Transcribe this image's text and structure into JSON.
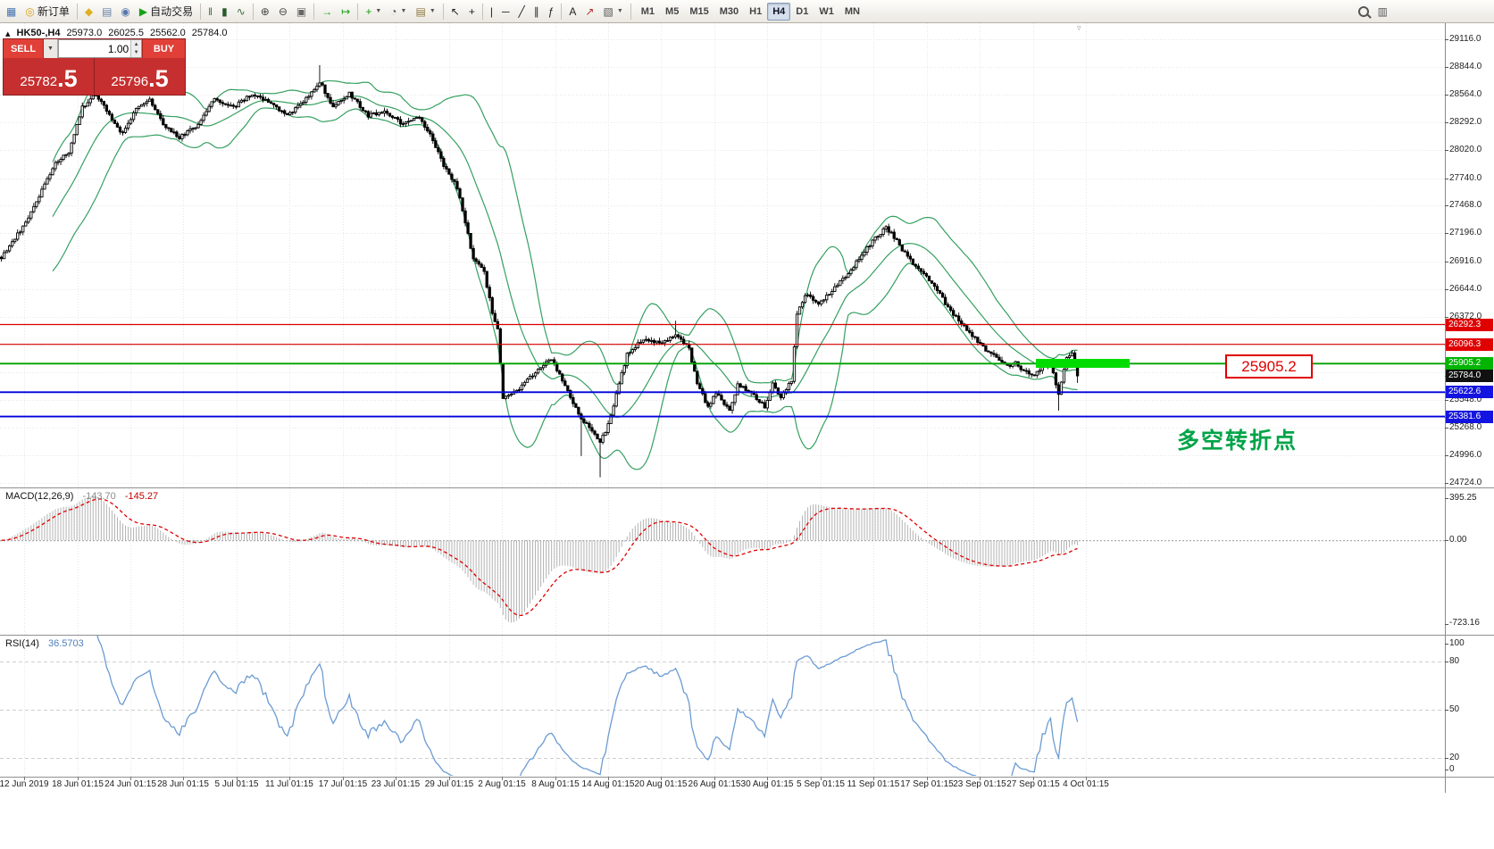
{
  "toolbar": {
    "left_items": [
      {
        "name": "new-chart-icon",
        "glyph": "▦",
        "color": "#4a74b0"
      },
      {
        "name": "new-order-button",
        "glyph": "◎",
        "color": "#d8a018",
        "label": "新订单"
      },
      {
        "sep": true
      },
      {
        "name": "metaeditor-icon",
        "glyph": "◆",
        "color": "#e0b020"
      },
      {
        "name": "history-center-icon",
        "glyph": "▤",
        "color": "#6a84a8"
      },
      {
        "name": "alerts-icon",
        "glyph": "◉",
        "color": "#5578aa"
      },
      {
        "name": "autotrading-button",
        "glyph": "▶",
        "color": "#18a018",
        "label": "自动交易"
      },
      {
        "sep": true
      },
      {
        "name": "bar-chart-icon",
        "glyph": "‖",
        "color": "#3a6e3a"
      },
      {
        "name": "candlestick-chart-icon",
        "glyph": "▮",
        "color": "#2a5a2a"
      },
      {
        "name": "line-chart-icon",
        "glyph": "∿",
        "color": "#3a6e3a"
      },
      {
        "sep": true
      },
      {
        "name": "zoom-in-icon",
        "glyph": "⊕",
        "color": "#444444"
      },
      {
        "name": "zoom-out-icon",
        "glyph": "⊖",
        "color": "#444444"
      },
      {
        "name": "tile-windows-icon",
        "glyph": "▣",
        "color": "#666666"
      },
      {
        "sep": true
      },
      {
        "name": "auto-scroll-icon",
        "glyph": "→",
        "color": "#18a018"
      },
      {
        "name": "chart-shift-icon",
        "glyph": "↦",
        "color": "#18a018"
      },
      {
        "sep": true
      },
      {
        "name": "indicators-dropdown",
        "glyph": "+",
        "color": "#18a018",
        "caret": true
      },
      {
        "name": "periods-dropdown",
        "glyph": "◔",
        "color": "#555555",
        "caret": true
      },
      {
        "name": "templates-dropdown",
        "glyph": "▤",
        "color": "#907840",
        "caret": true
      },
      {
        "sep": true
      },
      {
        "name": "cursor-icon",
        "glyph": "↖",
        "color": "#222222"
      },
      {
        "name": "crosshair-icon",
        "glyph": "+",
        "color": "#222222"
      },
      {
        "sep": true
      },
      {
        "name": "vertical-line-icon",
        "glyph": "|",
        "color": "#222222"
      },
      {
        "name": "horizontal-line-icon",
        "glyph": "─",
        "color": "#222222"
      },
      {
        "name": "trendline-icon",
        "glyph": "╱",
        "color": "#222222"
      },
      {
        "name": "channel-icon",
        "glyph": "∥",
        "color": "#222222"
      },
      {
        "name": "fibonacci-icon",
        "glyph": "ƒ",
        "color": "#222222"
      },
      {
        "sep": true
      },
      {
        "name": "text-icon",
        "glyph": "A",
        "color": "#222222"
      },
      {
        "name": "arrow-tools-icon",
        "glyph": "↗",
        "color": "#b03030"
      },
      {
        "name": "shapes-dropdown",
        "glyph": "▧",
        "color": "#555555",
        "caret": true
      },
      {
        "sep": true
      }
    ],
    "timeframes": [
      {
        "label": "M1"
      },
      {
        "label": "M5"
      },
      {
        "label": "M15"
      },
      {
        "label": "M30"
      },
      {
        "label": "H1"
      },
      {
        "label": "H4",
        "active": true
      },
      {
        "label": "D1"
      },
      {
        "label": "W1"
      },
      {
        "label": "MN"
      }
    ],
    "right_items": [
      {
        "name": "search-icon",
        "magnifier": true
      },
      {
        "name": "window-list-icon",
        "glyph": "▥",
        "color": "#555555"
      }
    ]
  },
  "symbol_bar": {
    "marker": "▴",
    "symbol": "HK50-,H4",
    "open": "25973.0",
    "high": "26025.5",
    "low": "25562.0",
    "close": "25784.0"
  },
  "one_click": {
    "sell_label": "SELL",
    "buy_label": "BUY",
    "volume": "1.00",
    "dropdown_glyph": "▼",
    "up_glyph": "▲",
    "down_glyph": "▼",
    "sell_price_main": "25782",
    "sell_price_big": ".5",
    "buy_price_main": "25796",
    "buy_price_big": ".5"
  },
  "chart_data": {
    "type": "candlestick",
    "symbol": "HK50-,H4",
    "timeframe": "H4",
    "shift_marker_glyph": "▿",
    "y_axis": {
      "ticks": [
        {
          "price": 29116.0,
          "label": "29116.0"
        },
        {
          "price": 28844.0,
          "label": "28844.0"
        },
        {
          "price": 28564.0,
          "label": "28564.0"
        },
        {
          "price": 28292.0,
          "label": "28292.0"
        },
        {
          "price": 28020.0,
          "label": "28020.0"
        },
        {
          "price": 27740.0,
          "label": "27740.0"
        },
        {
          "price": 27468.0,
          "label": "27468.0"
        },
        {
          "price": 27196.0,
          "label": "27196.0"
        },
        {
          "price": 26916.0,
          "label": "26916.0"
        },
        {
          "price": 26644.0,
          "label": "26644.0"
        },
        {
          "price": 26372.0,
          "label": "26372.0"
        },
        {
          "price": 25548.0,
          "label": "25548.0"
        },
        {
          "price": 25268.0,
          "label": "25268.0"
        },
        {
          "price": 24996.0,
          "label": "24996.0"
        },
        {
          "price": 24724.0,
          "label": "24724.0"
        }
      ]
    },
    "grid_prices": [
      29116,
      28844,
      28564,
      28292,
      28020,
      27740,
      27468,
      27196,
      26916,
      26644,
      26372,
      26092,
      25820,
      25548,
      25268,
      24996,
      24724
    ],
    "x_axis": {
      "labels": [
        "12 Jun 2019",
        "18 Jun 01:15",
        "24 Jun 01:15",
        "28 Jun 01:15",
        "5 Jul 01:15",
        "11 Jul 01:15",
        "17 Jul 01:15",
        "23 Jul 01:15",
        "29 Jul 01:15",
        "2 Aug 01:15",
        "8 Aug 01:15",
        "14 Aug 01:15",
        "20 Aug 01:15",
        "26 Aug 01:15",
        "30 Aug 01:15",
        "5 Sep 01:15",
        "11 Sep 01:15",
        "17 Sep 01:15",
        "23 Sep 01:15",
        "27 Sep 01:15",
        "4 Oct 01:15"
      ],
      "positions": [
        27,
        87,
        146,
        205,
        265,
        324,
        384,
        443,
        503,
        562,
        622,
        681,
        740,
        800,
        859,
        919,
        978,
        1038,
        1097,
        1157,
        1216
      ]
    },
    "horizontal_lines": [
      {
        "price": 26292.3,
        "color": "#d60000",
        "width": 1.2
      },
      {
        "price": 26096.3,
        "color": "#d60000",
        "width": 1.2
      },
      {
        "price": 25905.2,
        "color": "#00a000",
        "width": 1.8
      },
      {
        "price": 25622.6,
        "color": "#0000dd",
        "width": 1.8
      },
      {
        "price": 25381.6,
        "color": "#0000dd",
        "width": 1.8
      }
    ],
    "price_tags": [
      {
        "price": 26292.3,
        "label": "26292.3",
        "color": "#e00000"
      },
      {
        "price": 26096.3,
        "label": "26096.3",
        "color": "#e00000"
      },
      {
        "price": 25905.2,
        "label": "25905.2",
        "color": "#00b400"
      },
      {
        "price": 25784.0,
        "label": "25784.0",
        "color": "#111111"
      },
      {
        "price": 25622.6,
        "label": "25622.6",
        "color": "#1414e0"
      },
      {
        "price": 25381.6,
        "label": "25381.6",
        "color": "#1414e0"
      }
    ],
    "annotations": {
      "price_box_label": "25905.2",
      "note_text": "多空转折点",
      "highlight_color": "#00dc00"
    },
    "candles": {
      "count": 400,
      "anchors": [
        [
          0,
          26950
        ],
        [
          10,
          27340
        ],
        [
          20,
          27900
        ],
        [
          25,
          28000
        ],
        [
          30,
          28440
        ],
        [
          35,
          28580
        ],
        [
          40,
          28360
        ],
        [
          45,
          28180
        ],
        [
          50,
          28440
        ],
        [
          55,
          28530
        ],
        [
          60,
          28270
        ],
        [
          66,
          28140
        ],
        [
          73,
          28270
        ],
        [
          79,
          28530
        ],
        [
          86,
          28440
        ],
        [
          93,
          28580
        ],
        [
          99,
          28490
        ],
        [
          106,
          28360
        ],
        [
          113,
          28530
        ],
        [
          118,
          28700
        ],
        [
          123,
          28440
        ],
        [
          129,
          28580
        ],
        [
          136,
          28360
        ],
        [
          142,
          28400
        ],
        [
          149,
          28270
        ],
        [
          154,
          28360
        ],
        [
          159,
          28180
        ],
        [
          164,
          27870
        ],
        [
          169,
          27650
        ],
        [
          172,
          27300
        ],
        [
          175,
          26940
        ],
        [
          179,
          26810
        ],
        [
          182,
          26410
        ],
        [
          184,
          26250
        ],
        [
          186,
          25550
        ],
        [
          192,
          25650
        ],
        [
          199,
          25850
        ],
        [
          204,
          25950
        ],
        [
          209,
          25700
        ],
        [
          212,
          25520
        ],
        [
          215,
          25350
        ],
        [
          219,
          25250
        ],
        [
          222,
          25120
        ],
        [
          225,
          25300
        ],
        [
          232,
          26000
        ],
        [
          238,
          26150
        ],
        [
          245,
          26100
        ],
        [
          250,
          26200
        ],
        [
          255,
          26050
        ],
        [
          258,
          25700
        ],
        [
          262,
          25480
        ],
        [
          265,
          25620
        ],
        [
          270,
          25430
        ],
        [
          273,
          25700
        ],
        [
          278,
          25620
        ],
        [
          283,
          25480
        ],
        [
          286,
          25700
        ],
        [
          289,
          25570
        ],
        [
          293,
          25740
        ],
        [
          295,
          26400
        ],
        [
          298,
          26590
        ],
        [
          303,
          26500
        ],
        [
          308,
          26630
        ],
        [
          313,
          26770
        ],
        [
          318,
          26940
        ],
        [
          323,
          27120
        ],
        [
          328,
          27250
        ],
        [
          331,
          27160
        ],
        [
          334,
          27030
        ],
        [
          338,
          26900
        ],
        [
          343,
          26770
        ],
        [
          348,
          26590
        ],
        [
          351,
          26460
        ],
        [
          354,
          26370
        ],
        [
          358,
          26230
        ],
        [
          363,
          26100
        ],
        [
          366,
          26010
        ],
        [
          369,
          25970
        ],
        [
          373,
          25880
        ],
        [
          376,
          25920
        ],
        [
          379,
          25830
        ],
        [
          383,
          25790
        ],
        [
          386,
          25880
        ],
        [
          389,
          25920
        ],
        [
          392,
          25600
        ],
        [
          395,
          25950
        ],
        [
          397,
          26000
        ],
        [
          399,
          25784
        ]
      ],
      "spikes": [
        {
          "i": 118,
          "high": 28860
        },
        {
          "i": 215,
          "low": 24990
        },
        {
          "i": 222,
          "low": 24780
        },
        {
          "i": 250,
          "high": 26330
        },
        {
          "i": 392,
          "low": 25440
        }
      ],
      "last_close": 25784.0
    },
    "bollinger": {
      "period": 20,
      "deviation": 2,
      "color": "#35a060"
    },
    "indicators": {
      "macd": {
        "name": "MACD(12,26,9)",
        "value_main": "-143.70",
        "value_signal": "-145.27",
        "scale_top": "395.25",
        "scale_zero": "0.00",
        "scale_bottom": "-723.16",
        "fast": 12,
        "slow": 26,
        "signal": 9,
        "histogram_color": "#b2b2b2",
        "signal_color": "#dd0000"
      },
      "rsi": {
        "name": "RSI(14)",
        "value": "36.5703",
        "period": 14,
        "levels": [
          80,
          50,
          20
        ],
        "scale_labels": [
          "100",
          "80",
          "50",
          "20",
          "0"
        ],
        "line_color": "#6b9bd2"
      }
    }
  }
}
